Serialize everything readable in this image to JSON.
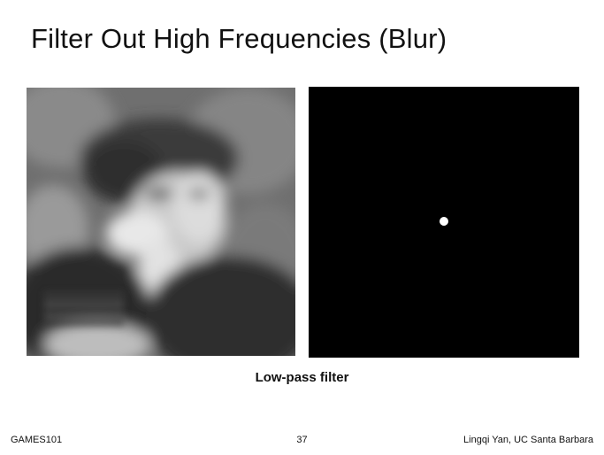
{
  "slide": {
    "title": "Filter Out High Frequencies (Blur)",
    "caption": "Low-pass filter",
    "footer_left": "GAMES101",
    "page_number": "37",
    "footer_right": "Lingqi Yan, UC Santa Barbara"
  },
  "images": {
    "left": "blurred-portrait-image",
    "right": "frequency-spectrum-low-pass-mask"
  },
  "colors": {
    "background": "#ffffff",
    "spectrum_background": "#000000",
    "spectrum_dot": "#ffffff"
  }
}
